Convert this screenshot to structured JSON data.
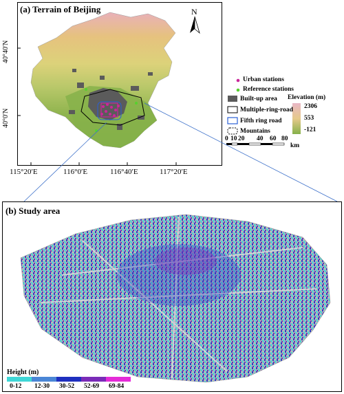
{
  "panel_a": {
    "title": "(a) Terrain of Beijing",
    "north_label": "N",
    "y_ticks": [
      "40°40′N",
      "40°0′N"
    ],
    "x_ticks": [
      "115°20′E",
      "116°0′E",
      "116°40′E",
      "117°20′E"
    ],
    "legend": {
      "urban_stations": "Urban stations",
      "reference_stations": "Reference stations",
      "built_up": "Built-up area",
      "multiple_ring": "Multiple-ring-road",
      "fifth_ring": "Fifth ring road",
      "mountains": "Mountains"
    },
    "elevation": {
      "title": "Elevation (m)",
      "max": "2306",
      "mid": "553",
      "min": "-121"
    },
    "scalebar": {
      "labels": [
        "0",
        "10",
        "20",
        "40",
        "60",
        "80"
      ],
      "unit": "km"
    }
  },
  "panel_b": {
    "title": "(b) Study area",
    "height_legend": {
      "title": "Height (m)",
      "classes": [
        {
          "label": "0-12",
          "color": "#3fd7d7"
        },
        {
          "label": "12-30",
          "color": "#4a86d6"
        },
        {
          "label": "30-52",
          "color": "#1f2fbf"
        },
        {
          "label": "52-69",
          "color": "#7a2bb8"
        },
        {
          "label": "69-84",
          "color": "#e52bd8"
        }
      ]
    }
  },
  "colors": {
    "urban_station": "#c9279a",
    "reference_station": "#56d12e",
    "built_up": "#5b5b5b",
    "fifth_ring": "#2a5fd6",
    "connector": "#3b6fc9",
    "elev_high": "#e8b7c6",
    "elev_mid": "#e6c98a",
    "elev_low": "#86b14a"
  }
}
